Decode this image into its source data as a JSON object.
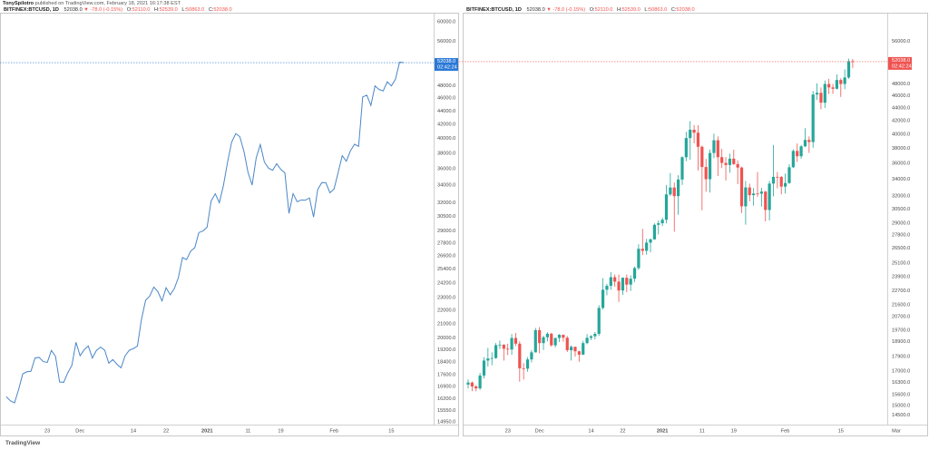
{
  "header": {
    "author": "TonySpilotro",
    "text": "published on TradingView.com, February 18, 2021 16:17:38 EST"
  },
  "footer": "TradingView",
  "chart_data": [
    {
      "type": "line",
      "color": "#4a86c8",
      "log_scale": true,
      "grid": false,
      "legend": {
        "symbol": "BITFINEX:BTCUSD, 1D",
        "last": "52038.0",
        "change": "▼ -78.0 (-0.15%)",
        "ohlc": [
          {
            "label": "O:",
            "value": "52110.0"
          },
          {
            "label": "H:",
            "value": "52539.0"
          },
          {
            "label": "L:",
            "value": "50863.0"
          },
          {
            "label": "C:",
            "value": "52038.0"
          }
        ]
      },
      "last_price_label": "52038.0",
      "countdown": "02:42:24",
      "price_label_color": "#2a78d6",
      "ylim": [
        14800,
        61700
      ],
      "yticks": [
        {
          "value": 60000,
          "label": "60000.0"
        },
        {
          "value": 56000,
          "label": "56000.0"
        },
        {
          "value": 48000,
          "label": "48000.0"
        },
        {
          "value": 46000,
          "label": "46000.0"
        },
        {
          "value": 44000,
          "label": "44000.0"
        },
        {
          "value": 42000,
          "label": "42000.0"
        },
        {
          "value": 40000,
          "label": "40000.0"
        },
        {
          "value": 38000,
          "label": "38000.0"
        },
        {
          "value": 36000,
          "label": "36000.0"
        },
        {
          "value": 34000,
          "label": "34000.0"
        },
        {
          "value": 32000,
          "label": "32000.0"
        },
        {
          "value": 30500,
          "label": "30500.0"
        },
        {
          "value": 29000,
          "label": "29000.0"
        },
        {
          "value": 27800,
          "label": "27800.0"
        },
        {
          "value": 26600,
          "label": "26600.0"
        },
        {
          "value": 25400,
          "label": "25400.0"
        },
        {
          "value": 24200,
          "label": "24200.0"
        },
        {
          "value": 23000,
          "label": "23000.0"
        },
        {
          "value": 22000,
          "label": "22000.0"
        },
        {
          "value": 21000,
          "label": "21000.0"
        },
        {
          "value": 20000,
          "label": "20000.0"
        },
        {
          "value": 19200,
          "label": "19200.0"
        },
        {
          "value": 18400,
          "label": "18400.0"
        },
        {
          "value": 17600,
          "label": "17600.0"
        },
        {
          "value": 16900,
          "label": "16900.0"
        },
        {
          "value": 16200,
          "label": "16200.0"
        },
        {
          "value": 15550,
          "label": "15550.0"
        },
        {
          "value": 14950,
          "label": "14950.0"
        }
      ],
      "categories": [
        null,
        null,
        null,
        null,
        null,
        null,
        null,
        null,
        null,
        null,
        "23",
        null,
        null,
        null,
        null,
        null,
        null,
        null,
        "Dec",
        null,
        null,
        null,
        null,
        null,
        null,
        null,
        null,
        null,
        null,
        null,
        null,
        "14",
        null,
        null,
        null,
        null,
        null,
        null,
        null,
        "22",
        null,
        null,
        null,
        null,
        null,
        null,
        null,
        null,
        null,
        "2021",
        null,
        null,
        null,
        null,
        null,
        null,
        null,
        null,
        null,
        "11",
        null,
        null,
        null,
        null,
        null,
        null,
        null,
        "19",
        null,
        null,
        null,
        null,
        null,
        null,
        null,
        null,
        null,
        null,
        null,
        null,
        "Feb",
        null,
        null,
        null,
        null,
        null,
        null,
        null,
        null,
        null,
        null,
        null,
        null,
        null,
        "15",
        null,
        null,
        null
      ],
      "values": [
        16300,
        16070,
        15960,
        16720,
        17650,
        17780,
        17810,
        18660,
        18690,
        18420,
        18370,
        19150,
        18760,
        17160,
        17140,
        17720,
        18180,
        19700,
        18800,
        19200,
        19450,
        18650,
        19150,
        19370,
        19170,
        18320,
        18550,
        18250,
        18030,
        18800,
        19160,
        19270,
        19440,
        21350,
        22800,
        23130,
        23860,
        23480,
        22740,
        23810,
        23230,
        23730,
        24660,
        26440,
        26250,
        27040,
        27360,
        28840,
        29000,
        29370,
        32190,
        33000,
        31990,
        33970,
        36820,
        39470,
        40670,
        40240,
        38240,
        35540,
        34010,
        37390,
        39150,
        36830,
        36070,
        35800,
        36630,
        35920,
        35470,
        30830,
        33010,
        32100,
        32290,
        32270,
        32520,
        30430,
        33470,
        34300,
        34290,
        33110,
        33540,
        35510,
        37670,
        36950,
        38300,
        39200,
        38900,
        46200,
        46480,
        44850,
        47990,
        47400,
        47170,
        48690,
        47990,
        49130,
        52110,
        52038
      ]
    },
    {
      "type": "candlestick",
      "up_color": "#26a69a",
      "down_color": "#ef5350",
      "log_scale": true,
      "grid": false,
      "legend": {
        "symbol": "BITFINEX:BTCUSD, 1D",
        "last": "52038.0",
        "change": "▼ -78.0 (-0.15%)",
        "ohlc": [
          {
            "label": "O:",
            "value": "52110.0"
          },
          {
            "label": "H:",
            "value": "52539.0"
          },
          {
            "label": "L:",
            "value": "50863.0"
          },
          {
            "label": "C:",
            "value": "52038.0"
          }
        ]
      },
      "last_price_label": "52038.0",
      "countdown": "02:42:24",
      "price_label_color": "#ef5350",
      "ylim": [
        14000,
        61900
      ],
      "yticks": [
        {
          "value": 56000,
          "label": "56000.0"
        },
        {
          "value": 48000,
          "label": "48000.0"
        },
        {
          "value": 46000,
          "label": "46000.0"
        },
        {
          "value": 44000,
          "label": "44000.0"
        },
        {
          "value": 42000,
          "label": "42000.0"
        },
        {
          "value": 40000,
          "label": "40000.0"
        },
        {
          "value": 38000,
          "label": "38000.0"
        },
        {
          "value": 36000,
          "label": "36000.0"
        },
        {
          "value": 34000,
          "label": "34000.0"
        },
        {
          "value": 32000,
          "label": "32000.0"
        },
        {
          "value": 30500,
          "label": "30500.0"
        },
        {
          "value": 29000,
          "label": "29000.0"
        },
        {
          "value": 27800,
          "label": "27800.0"
        },
        {
          "value": 26500,
          "label": "26500.0"
        },
        {
          "value": 25100,
          "label": "25100.0"
        },
        {
          "value": 23900,
          "label": "23900.0"
        },
        {
          "value": 22700,
          "label": "22700.0"
        },
        {
          "value": 21600,
          "label": "21600.0"
        },
        {
          "value": 20700,
          "label": "20700.0"
        },
        {
          "value": 19700,
          "label": "19700.0"
        },
        {
          "value": 18900,
          "label": "18900.0"
        },
        {
          "value": 17900,
          "label": "17900.0"
        },
        {
          "value": 17000,
          "label": "17000.0"
        },
        {
          "value": 16300,
          "label": "16300.0"
        },
        {
          "value": 15600,
          "label": "15600.0"
        },
        {
          "value": 15000,
          "label": "15000.0"
        },
        {
          "value": 14500,
          "label": "14500.0"
        }
      ],
      "categories": [
        null,
        null,
        null,
        null,
        null,
        null,
        null,
        null,
        null,
        null,
        "23",
        null,
        null,
        null,
        null,
        null,
        null,
        null,
        "Dec",
        null,
        null,
        null,
        null,
        null,
        null,
        null,
        null,
        null,
        null,
        null,
        null,
        "14",
        null,
        null,
        null,
        null,
        null,
        null,
        null,
        "22",
        null,
        null,
        null,
        null,
        null,
        null,
        null,
        null,
        null,
        "2021",
        null,
        null,
        null,
        null,
        null,
        null,
        null,
        null,
        null,
        "11",
        null,
        null,
        null,
        null,
        null,
        null,
        null,
        "19",
        null,
        null,
        null,
        null,
        null,
        null,
        null,
        null,
        null,
        null,
        null,
        null,
        "Feb",
        null,
        null,
        null,
        null,
        null,
        null,
        null,
        null,
        null,
        null,
        null,
        null,
        null,
        "15",
        null,
        null,
        null,
        null,
        null,
        null,
        null,
        null,
        null,
        null,
        null,
        null,
        null,
        "Mar"
      ],
      "open": [
        16180,
        16300,
        16070,
        15960,
        16720,
        17650,
        17780,
        17810,
        18660,
        18690,
        18420,
        18370,
        19150,
        18760,
        17160,
        17140,
        17720,
        18180,
        19700,
        18800,
        19200,
        19450,
        18650,
        19150,
        19370,
        19170,
        18320,
        18550,
        18250,
        18030,
        18800,
        19160,
        19270,
        19440,
        21350,
        22800,
        23130,
        23860,
        23480,
        22740,
        23810,
        23230,
        23730,
        24660,
        26440,
        26250,
        27040,
        27360,
        28840,
        29000,
        29370,
        32190,
        33000,
        31990,
        33970,
        36820,
        39470,
        40670,
        40240,
        38240,
        35540,
        34010,
        37390,
        39150,
        36830,
        36070,
        35800,
        36630,
        35920,
        35470,
        30830,
        33010,
        32100,
        32290,
        32270,
        32520,
        30430,
        33470,
        34300,
        34290,
        33110,
        33540,
        35510,
        37670,
        36950,
        38300,
        39200,
        38900,
        46200,
        46480,
        44850,
        47990,
        47400,
        47170,
        48690,
        47990,
        49130,
        52110,
        null,
        null,
        null,
        null,
        null,
        null,
        null,
        null,
        null,
        null,
        null
      ],
      "high": [
        16480,
        16360,
        16150,
        16880,
        17860,
        18480,
        18180,
        18800,
        18970,
        18730,
        18760,
        19420,
        19490,
        18920,
        17480,
        17870,
        18330,
        19860,
        19920,
        19310,
        19560,
        19510,
        19170,
        19420,
        19390,
        19290,
        18640,
        18560,
        18290,
        18950,
        19410,
        19350,
        19570,
        21560,
        23770,
        23290,
        24300,
        24100,
        24100,
        23840,
        24100,
        24020,
        24790,
        26880,
        28420,
        27410,
        27440,
        28990,
        29300,
        29600,
        33300,
        34780,
        33600,
        34500,
        36940,
        40370,
        41950,
        41380,
        41350,
        38400,
        36600,
        37850,
        40100,
        39700,
        37950,
        36850,
        37300,
        37850,
        36400,
        35600,
        33800,
        33470,
        32950,
        34900,
        32950,
        32600,
        33800,
        38500,
        34900,
        34400,
        34700,
        35900,
        37900,
        38700,
        38500,
        40900,
        39700,
        46800,
        48100,
        47400,
        48600,
        48900,
        48000,
        49700,
        49000,
        50600,
        52600,
        52539,
        null,
        null,
        null,
        null,
        null,
        null,
        null,
        null,
        null,
        null,
        null
      ],
      "low": [
        15960,
        15800,
        15790,
        15870,
        16550,
        17270,
        17350,
        17760,
        18400,
        17650,
        18000,
        18020,
        18600,
        16350,
        16480,
        16950,
        17530,
        18170,
        18120,
        18340,
        18920,
        18560,
        18510,
        18870,
        18900,
        18200,
        17650,
        17910,
        17570,
        18010,
        18720,
        19000,
        19050,
        19300,
        21230,
        22350,
        22800,
        23060,
        21810,
        22380,
        22600,
        22700,
        23440,
        24500,
        25850,
        25880,
        26100,
        27320,
        27850,
        28700,
        29000,
        32000,
        28130,
        29900,
        33300,
        36300,
        36500,
        38720,
        35100,
        30400,
        32500,
        32400,
        36700,
        34400,
        35400,
        33850,
        34800,
        35800,
        33400,
        30100,
        28850,
        31400,
        30900,
        31900,
        30800,
        29200,
        29300,
        31950,
        32900,
        32200,
        32300,
        33450,
        35400,
        36200,
        36600,
        38200,
        37400,
        38100,
        45300,
        43800,
        44000,
        46300,
        46300,
        47050,
        45800,
        47100,
        48900,
        50863,
        null,
        null,
        null,
        null,
        null,
        null,
        null,
        null,
        null,
        null,
        null
      ],
      "close": [
        16300,
        16070,
        15960,
        16720,
        17650,
        17780,
        17810,
        18660,
        18690,
        18420,
        18370,
        19150,
        18760,
        17160,
        17140,
        17720,
        18180,
        19700,
        18800,
        19200,
        19450,
        18650,
        19150,
        19370,
        19170,
        18320,
        18550,
        18250,
        18030,
        18800,
        19160,
        19270,
        19440,
        21350,
        22800,
        23130,
        23860,
        23480,
        22740,
        23810,
        23230,
        23730,
        24660,
        26440,
        26250,
        27040,
        27360,
        28840,
        29000,
        29370,
        32190,
        33000,
        31990,
        33970,
        36820,
        39470,
        40670,
        40240,
        38240,
        35540,
        34010,
        37390,
        39150,
        36830,
        36070,
        35800,
        36630,
        35920,
        35470,
        30830,
        33010,
        32100,
        32290,
        32270,
        32520,
        30430,
        33470,
        34300,
        34290,
        33110,
        33540,
        35510,
        37670,
        36950,
        38300,
        39200,
        38900,
        46200,
        46480,
        44850,
        47990,
        47400,
        47170,
        48690,
        47990,
        49130,
        52110,
        52038,
        null,
        null,
        null,
        null,
        null,
        null,
        null,
        null,
        null,
        null,
        null
      ]
    }
  ]
}
